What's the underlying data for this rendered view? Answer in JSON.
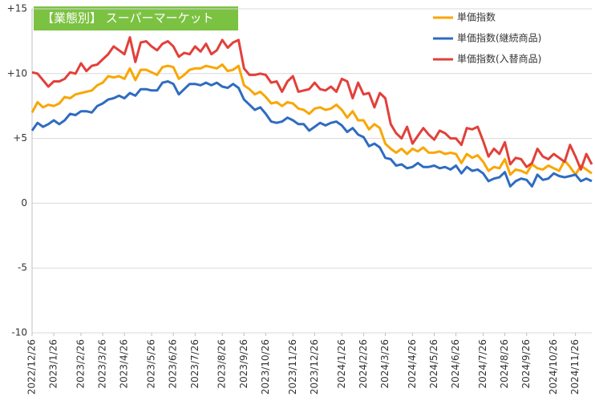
{
  "chart_data": {
    "type": "line",
    "title": "【業態別】 スーパーマーケット",
    "categories": [
      "2022/12/26",
      null,
      null,
      null,
      "2023/1/26",
      null,
      null,
      null,
      null,
      "2023/2/26",
      null,
      null,
      null,
      "2023/3/26",
      null,
      null,
      null,
      "2023/4/26",
      null,
      null,
      null,
      null,
      "2023/5/26",
      null,
      null,
      null,
      "2023/6/26",
      null,
      null,
      null,
      "2023/7/26",
      null,
      null,
      null,
      null,
      "2023/8/26",
      null,
      null,
      null,
      "2023/9/26",
      null,
      null,
      null,
      "2023/10/26",
      null,
      null,
      null,
      null,
      "2023/11/26",
      null,
      null,
      null,
      "2023/12/26",
      null,
      null,
      null,
      null,
      "2024/1/26",
      null,
      null,
      null,
      "2024/2/26",
      null,
      null,
      null,
      "2024/3/26",
      null,
      null,
      null,
      null,
      "2024/4/26",
      null,
      null,
      null,
      "2024/5/26",
      null,
      null,
      null,
      "2024/6/26",
      null,
      null,
      null,
      null,
      "2024/7/26",
      null,
      null,
      null,
      "2024/8/26",
      null,
      null,
      null,
      "2024/9/26",
      null,
      null,
      null,
      null,
      "2024/10/26",
      null,
      null,
      null,
      "2024/11/26",
      null,
      null,
      null
    ],
    "series": [
      {
        "name": "単価指数",
        "color": "#f9a602",
        "values": [
          7.0,
          7.8,
          7.4,
          7.6,
          7.5,
          7.7,
          8.2,
          8.1,
          8.4,
          8.5,
          8.6,
          8.7,
          9.1,
          9.3,
          9.8,
          9.7,
          9.8,
          9.6,
          10.4,
          9.5,
          10.3,
          10.3,
          10.1,
          9.9,
          10.5,
          10.6,
          10.5,
          9.6,
          9.9,
          10.3,
          10.4,
          10.4,
          10.6,
          10.5,
          10.4,
          10.7,
          10.2,
          10.3,
          10.6,
          9.1,
          8.8,
          8.4,
          8.6,
          8.2,
          7.7,
          7.8,
          7.5,
          7.8,
          7.7,
          7.3,
          7.2,
          6.9,
          7.3,
          7.4,
          7.2,
          7.3,
          7.6,
          7.2,
          6.6,
          7.1,
          6.4,
          6.4,
          5.7,
          6.1,
          5.8,
          4.6,
          4.2,
          3.9,
          4.2,
          3.8,
          4.2,
          4.0,
          4.3,
          3.9,
          3.9,
          4.0,
          3.8,
          3.9,
          3.8,
          3.1,
          3.8,
          3.5,
          3.7,
          3.2,
          2.5,
          2.8,
          2.7,
          3.4,
          2.2,
          2.6,
          2.5,
          2.3,
          3.0,
          2.7,
          2.6,
          2.9,
          2.7,
          2.5,
          3.3,
          2.8,
          2.2,
          2.9,
          2.6,
          2.3
        ]
      },
      {
        "name": "単価指数(継続商品)",
        "color": "#2f6cc0",
        "values": [
          5.6,
          6.2,
          5.9,
          6.1,
          6.4,
          6.1,
          6.4,
          6.9,
          6.8,
          7.1,
          7.1,
          7.0,
          7.5,
          7.7,
          8.0,
          8.1,
          8.3,
          8.1,
          8.5,
          8.3,
          8.8,
          8.8,
          8.7,
          8.7,
          9.3,
          9.4,
          9.2,
          8.4,
          8.8,
          9.2,
          9.2,
          9.1,
          9.3,
          9.1,
          9.3,
          9.0,
          8.9,
          9.2,
          8.9,
          8.0,
          7.6,
          7.2,
          7.4,
          6.9,
          6.3,
          6.2,
          6.3,
          6.6,
          6.4,
          6.1,
          6.1,
          5.6,
          5.9,
          6.2,
          6.0,
          6.2,
          6.3,
          6.0,
          5.5,
          5.8,
          5.3,
          5.1,
          4.4,
          4.6,
          4.3,
          3.5,
          3.4,
          2.9,
          3.0,
          2.7,
          2.8,
          3.1,
          2.8,
          2.8,
          2.9,
          2.7,
          2.8,
          2.6,
          2.9,
          2.3,
          2.8,
          2.5,
          2.6,
          2.3,
          1.7,
          1.9,
          2.0,
          2.4,
          1.3,
          1.7,
          1.9,
          1.8,
          1.3,
          2.2,
          1.8,
          1.9,
          2.3,
          2.1,
          2.0,
          2.1,
          2.2,
          1.7,
          1.9,
          1.7
        ]
      },
      {
        "name": "単価指数(入替商品)",
        "color": "#e2403a",
        "values": [
          10.1,
          10.0,
          9.5,
          9.0,
          9.4,
          9.4,
          9.6,
          10.1,
          10.0,
          10.8,
          10.2,
          10.6,
          10.7,
          11.1,
          11.5,
          12.1,
          11.8,
          11.5,
          12.8,
          10.9,
          12.4,
          12.5,
          12.1,
          11.8,
          12.3,
          12.5,
          12.1,
          11.3,
          11.6,
          11.5,
          12.1,
          11.7,
          12.3,
          11.5,
          11.8,
          12.6,
          12.0,
          12.4,
          12.6,
          10.4,
          9.9,
          9.9,
          10.0,
          9.9,
          9.3,
          9.4,
          8.6,
          9.4,
          9.8,
          8.6,
          8.7,
          8.8,
          9.3,
          8.8,
          8.7,
          9.0,
          8.6,
          9.6,
          9.4,
          8.1,
          9.3,
          8.4,
          8.5,
          7.4,
          8.5,
          8.1,
          6.1,
          5.4,
          5.0,
          5.9,
          4.6,
          5.2,
          5.8,
          5.3,
          4.9,
          5.6,
          5.4,
          5.0,
          5.0,
          4.5,
          5.8,
          5.7,
          5.9,
          4.8,
          3.6,
          4.2,
          3.8,
          4.7,
          3.0,
          3.5,
          3.4,
          2.8,
          3.1,
          4.2,
          3.6,
          3.4,
          3.8,
          3.5,
          3.2,
          4.5,
          3.6,
          2.6,
          3.8,
          3.0
        ]
      }
    ],
    "ylim": [
      -10,
      15
    ],
    "yticks": [
      -10,
      -5,
      0,
      {
        "value": 5,
        "label": "+5"
      },
      {
        "value": 10,
        "label": "+10"
      },
      {
        "value": 15,
        "label": "+15"
      }
    ],
    "grid": true,
    "legend": "top-right"
  }
}
